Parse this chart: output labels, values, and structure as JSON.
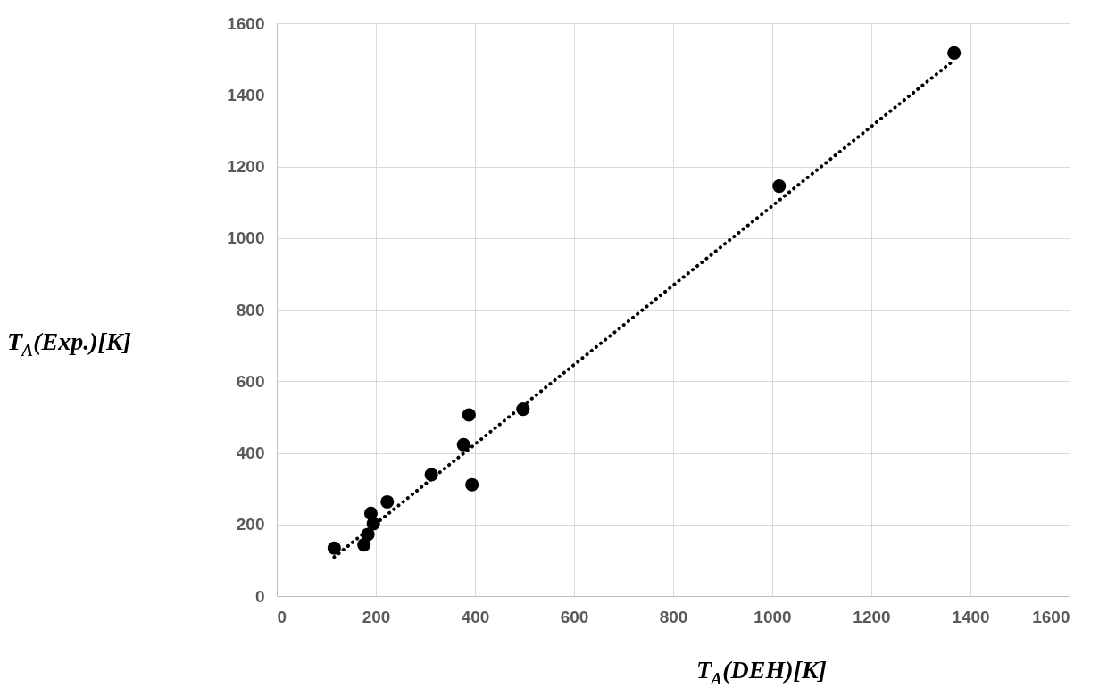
{
  "chart_data": {
    "type": "scatter",
    "xlabel": "T$_{A}$(DEH)[K]",
    "ylabel": "T$_{A}$(Exp.)[K]",
    "series": [
      {
        "color": "#000000",
        "marker": "circle",
        "x": [
          116,
          176,
          184,
          195,
          190,
          223,
          312,
          377,
          388,
          394,
          497,
          1014,
          1367
        ],
        "values": [
          134,
          143,
          172,
          202,
          231,
          263,
          339,
          423,
          506,
          311,
          522,
          1145,
          1517
        ]
      },
      {
        "type": "line",
        "color": "#000000",
        "marker": "none",
        "line_style": "dotted",
        "x": [
          116,
          1367
        ],
        "values": [
          109,
          1497
        ]
      }
    ],
    "xlim": [
      0,
      1600
    ],
    "ylim": [
      0,
      1600
    ],
    "xticks": [
      0,
      200,
      400,
      600,
      800,
      1000,
      1200,
      1400,
      1600
    ],
    "yticks": [
      0,
      200,
      400,
      600,
      800,
      1000,
      1200,
      1400,
      1600
    ],
    "grid": true
  }
}
